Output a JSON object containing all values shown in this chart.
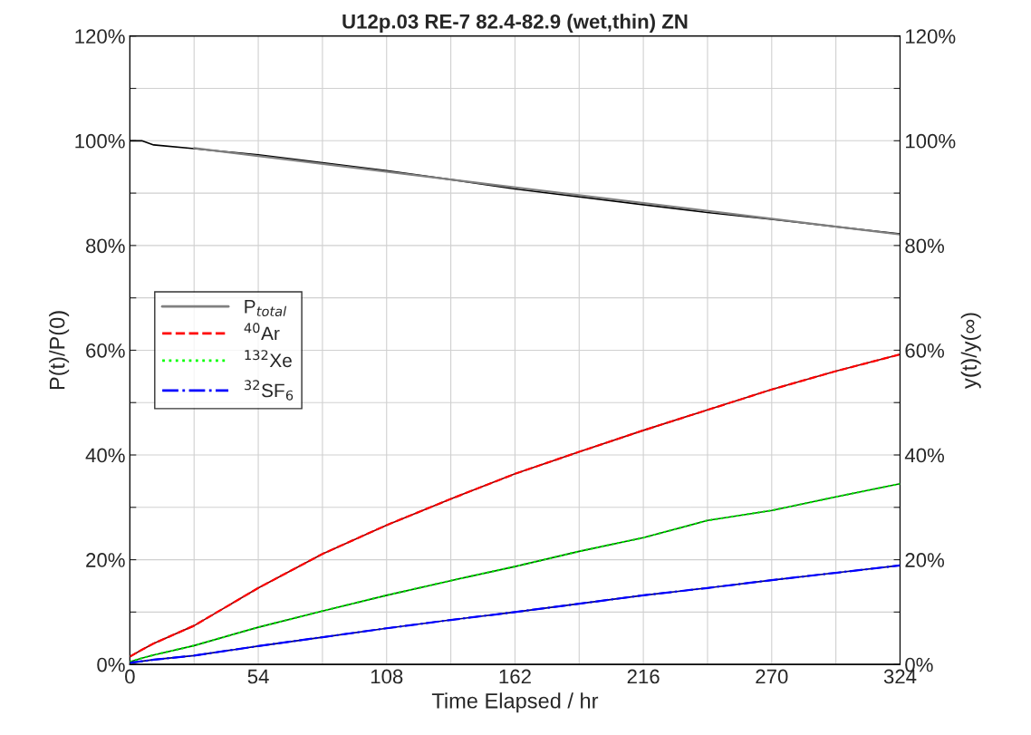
{
  "chart_data": {
    "type": "line",
    "title": "U12p.03 RE-7 82.4-82.9 (wet,thin) ZN",
    "xlabel": "Time Elapsed / hr",
    "ylabel": "P(t)/P(0)",
    "y2label": "y(t)/y(∞)",
    "x": [
      0,
      5,
      10,
      27,
      54,
      81,
      108,
      135,
      162,
      189,
      216,
      243,
      270,
      297,
      324
    ],
    "xlim": [
      0,
      324
    ],
    "xticks": [
      0,
      {
        "value": 27,
        "label": null
      },
      54,
      {
        "value": 81,
        "label": null
      },
      108,
      {
        "value": 135,
        "label": null
      },
      162,
      {
        "value": 189,
        "label": null
      },
      216,
      {
        "value": 243,
        "label": null
      },
      270,
      {
        "value": 297,
        "label": null
      },
      324
    ],
    "ylim": [
      0,
      120
    ],
    "yticks": [
      {
        "value": 0,
        "label": "0%"
      },
      {
        "value": 10,
        "label": null
      },
      {
        "value": 20,
        "label": "20%"
      },
      {
        "value": 30,
        "label": null
      },
      {
        "value": 40,
        "label": "40%"
      },
      {
        "value": 50,
        "label": null
      },
      {
        "value": 60,
        "label": "60%"
      },
      {
        "value": 70,
        "label": null
      },
      {
        "value": 80,
        "label": "80%"
      },
      {
        "value": 90,
        "label": null
      },
      {
        "value": 100,
        "label": "100%"
      },
      {
        "value": 110,
        "label": null
      },
      {
        "value": 120,
        "label": "120%"
      }
    ],
    "y2lim": [
      0,
      120
    ],
    "y2ticks": [
      {
        "value": 0,
        "label": "0%"
      },
      {
        "value": 10,
        "label": null
      },
      {
        "value": 20,
        "label": "20%"
      },
      {
        "value": 30,
        "label": null
      },
      {
        "value": 40,
        "label": "40%"
      },
      {
        "value": 50,
        "label": null
      },
      {
        "value": 60,
        "label": "60%"
      },
      {
        "value": 70,
        "label": null
      },
      {
        "value": 80,
        "label": "80%"
      },
      {
        "value": 90,
        "label": null
      },
      {
        "value": 100,
        "label": "100%"
      },
      {
        "value": 110,
        "label": null
      },
      {
        "value": 120,
        "label": "120%"
      }
    ],
    "grid": true,
    "legend": "left",
    "marker": "none",
    "series": [
      {
        "color": "#000000",
        "line_style": "solid",
        "values": [
          100,
          100,
          99.2,
          98.5,
          97.3,
          95.8,
          94.3,
          92.6,
          90.8,
          89.3,
          87.8,
          86.3,
          85,
          83.6,
          82.2
        ]
      },
      {
        "name": "P$_{total}$",
        "color": "#808080",
        "line_style": "solid",
        "x": [
          27,
          324
        ],
        "values": [
          98.6,
          82.1
        ]
      },
      {
        "color": "#8b0000",
        "line_style": "solid",
        "axis": "y2",
        "values": [
          1.5,
          2.8,
          4,
          7.4,
          14.6,
          21.1,
          26.6,
          31.6,
          36.4,
          40.6,
          44.7,
          48.6,
          52.5,
          56,
          59.2
        ]
      },
      {
        "name": "$^{40}$Ar",
        "color": "#ff0000",
        "line_style": "dashed",
        "axis": "y2",
        "values": [
          1.5,
          2.8,
          4,
          7.4,
          14.6,
          21.1,
          26.6,
          31.6,
          36.4,
          40.6,
          44.7,
          48.6,
          52.5,
          56,
          59.2
        ]
      },
      {
        "color": "#006400",
        "line_style": "solid",
        "axis": "y2",
        "values": [
          0.5,
          1.2,
          1.8,
          3.6,
          7.1,
          10.2,
          13.2,
          16,
          18.7,
          21.6,
          24.2,
          27.5,
          29.4,
          32,
          34.5
        ]
      },
      {
        "name": "$^{132}$Xe",
        "color": "#00ff00",
        "line_style": "dotted",
        "axis": "y2",
        "values": [
          0.5,
          1.2,
          1.8,
          3.6,
          7.1,
          10.2,
          13.2,
          16,
          18.7,
          21.6,
          24.2,
          27.5,
          29.4,
          32,
          34.5
        ]
      },
      {
        "color": "#000080",
        "line_style": "solid",
        "axis": "y2",
        "values": [
          0.3,
          0.6,
          0.9,
          1.7,
          3.5,
          5.2,
          6.9,
          8.5,
          10,
          11.6,
          13.2,
          14.6,
          16.1,
          17.5,
          18.9
        ]
      },
      {
        "name": "$^{32}$SF$_{6}$",
        "color": "#0000ff",
        "line_style": "dashdot",
        "axis": "y2",
        "values": [
          0.3,
          0.6,
          0.9,
          1.7,
          3.5,
          5.2,
          6.9,
          8.5,
          10,
          11.6,
          13.2,
          14.6,
          16.1,
          17.5,
          18.9
        ]
      }
    ]
  }
}
